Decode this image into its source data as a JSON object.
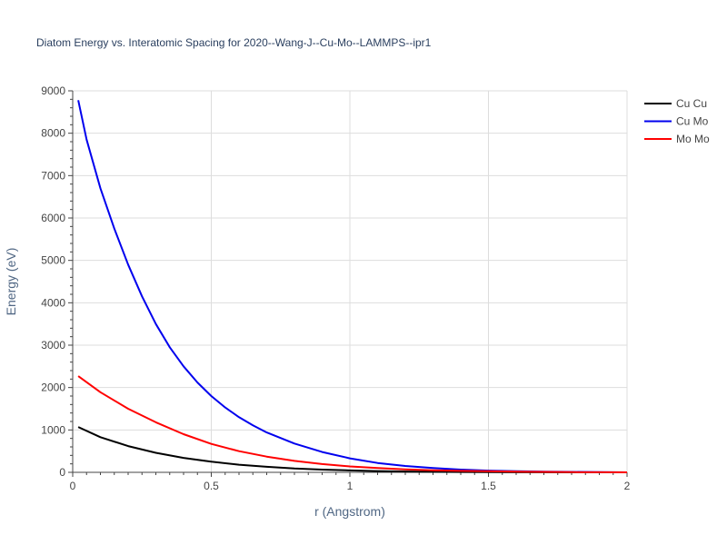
{
  "chart_data": {
    "type": "line",
    "title": "Diatom Energy vs. Interatomic Spacing for 2020--Wang-J--Cu-Mo--LAMMPS--ipr1",
    "xlabel": "r (Angstrom)",
    "ylabel": "Energy (eV)",
    "xlim": [
      0,
      2
    ],
    "ylim": [
      0,
      9000
    ],
    "xticks": [
      0,
      0.5,
      1,
      1.5,
      2
    ],
    "xtick_labels": [
      "0",
      "0.5",
      "1",
      "1.5",
      "2"
    ],
    "yticks": [
      0,
      1000,
      2000,
      3000,
      4000,
      5000,
      6000,
      7000,
      8000,
      9000
    ],
    "ytick_labels": [
      "0",
      "1000",
      "2000",
      "3000",
      "4000",
      "5000",
      "6000",
      "7000",
      "8000",
      "9000"
    ],
    "grid": true,
    "legend_position": "top-right",
    "series": [
      {
        "name": "Cu Cu",
        "color": "#000000",
        "x": [
          0.02,
          0.1,
          0.2,
          0.3,
          0.4,
          0.5,
          0.6,
          0.7,
          0.8,
          0.9,
          1.0,
          1.1,
          1.2,
          1.3,
          1.4,
          1.5,
          1.6,
          1.7,
          1.8,
          1.9,
          2.0
        ],
        "y": [
          1070,
          830,
          620,
          460,
          340,
          250,
          180,
          130,
          90,
          65,
          45,
          30,
          20,
          12,
          8,
          5,
          3,
          2,
          1,
          0,
          0
        ]
      },
      {
        "name": "Cu Mo",
        "color": "#0000ee",
        "x": [
          0.02,
          0.05,
          0.1,
          0.15,
          0.2,
          0.25,
          0.3,
          0.35,
          0.4,
          0.45,
          0.5,
          0.55,
          0.6,
          0.65,
          0.7,
          0.8,
          0.9,
          1.0,
          1.1,
          1.2,
          1.3,
          1.4,
          1.5,
          1.6,
          1.7,
          1.8,
          1.9,
          2.0
        ],
        "y": [
          8780,
          7850,
          6700,
          5750,
          4900,
          4150,
          3500,
          2950,
          2500,
          2120,
          1800,
          1530,
          1300,
          1110,
          940,
          680,
          480,
          330,
          220,
          150,
          100,
          65,
          40,
          25,
          15,
          10,
          5,
          0
        ]
      },
      {
        "name": "Mo Mo",
        "color": "#ff0000",
        "x": [
          0.02,
          0.1,
          0.2,
          0.3,
          0.4,
          0.5,
          0.6,
          0.7,
          0.8,
          0.9,
          1.0,
          1.1,
          1.2,
          1.3,
          1.4,
          1.5,
          1.6,
          1.7,
          1.8,
          1.9,
          2.0
        ],
        "y": [
          2270,
          1890,
          1500,
          1180,
          900,
          670,
          500,
          370,
          270,
          195,
          140,
          100,
          70,
          50,
          35,
          25,
          15,
          10,
          5,
          2,
          0
        ]
      }
    ]
  }
}
